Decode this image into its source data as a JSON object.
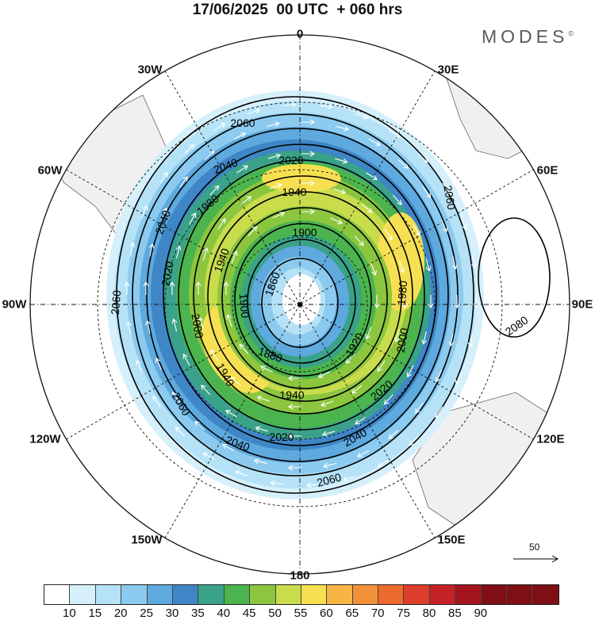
{
  "title": "17/06/2025  00 UTC  + 060 hrs",
  "brand": "MODES",
  "brand_mark": "©",
  "longitude_labels": {
    "n": "0",
    "e30": "30E",
    "e60": "60E",
    "e90": "90E",
    "e120": "120E",
    "e150": "150E",
    "s": "180",
    "w150": "150W",
    "w120": "120W",
    "w90": "90W",
    "w60": "60W",
    "w30": "30W"
  },
  "contour_labels": [
    "1860",
    "1880",
    "1900",
    "1920",
    "1940",
    "1960",
    "1980",
    "2000",
    "2020",
    "2040",
    "2060",
    "2080"
  ],
  "reference_vector": {
    "value": "50"
  },
  "colorbar": {
    "labels": [
      "10",
      "15",
      "20",
      "25",
      "30",
      "35",
      "40",
      "45",
      "50",
      "55",
      "60",
      "65",
      "70",
      "75",
      "80",
      "85",
      "90"
    ],
    "colors": [
      "#ffffff",
      "#d6f0fb",
      "#b5e2f6",
      "#8ccbef",
      "#5ea9de",
      "#3f86c6",
      "#3aa288",
      "#4bb44e",
      "#8cc63f",
      "#c8dc4c",
      "#f6e052",
      "#f7b544",
      "#f3903a",
      "#ec6a2c",
      "#dc3d2c",
      "#c42227",
      "#a3141d",
      "#7f0f14"
    ]
  },
  "colors": {
    "land": "#f0f0f0",
    "coast": "#666666",
    "contour": "#000000",
    "wind_arrow": "#ffffff"
  }
}
